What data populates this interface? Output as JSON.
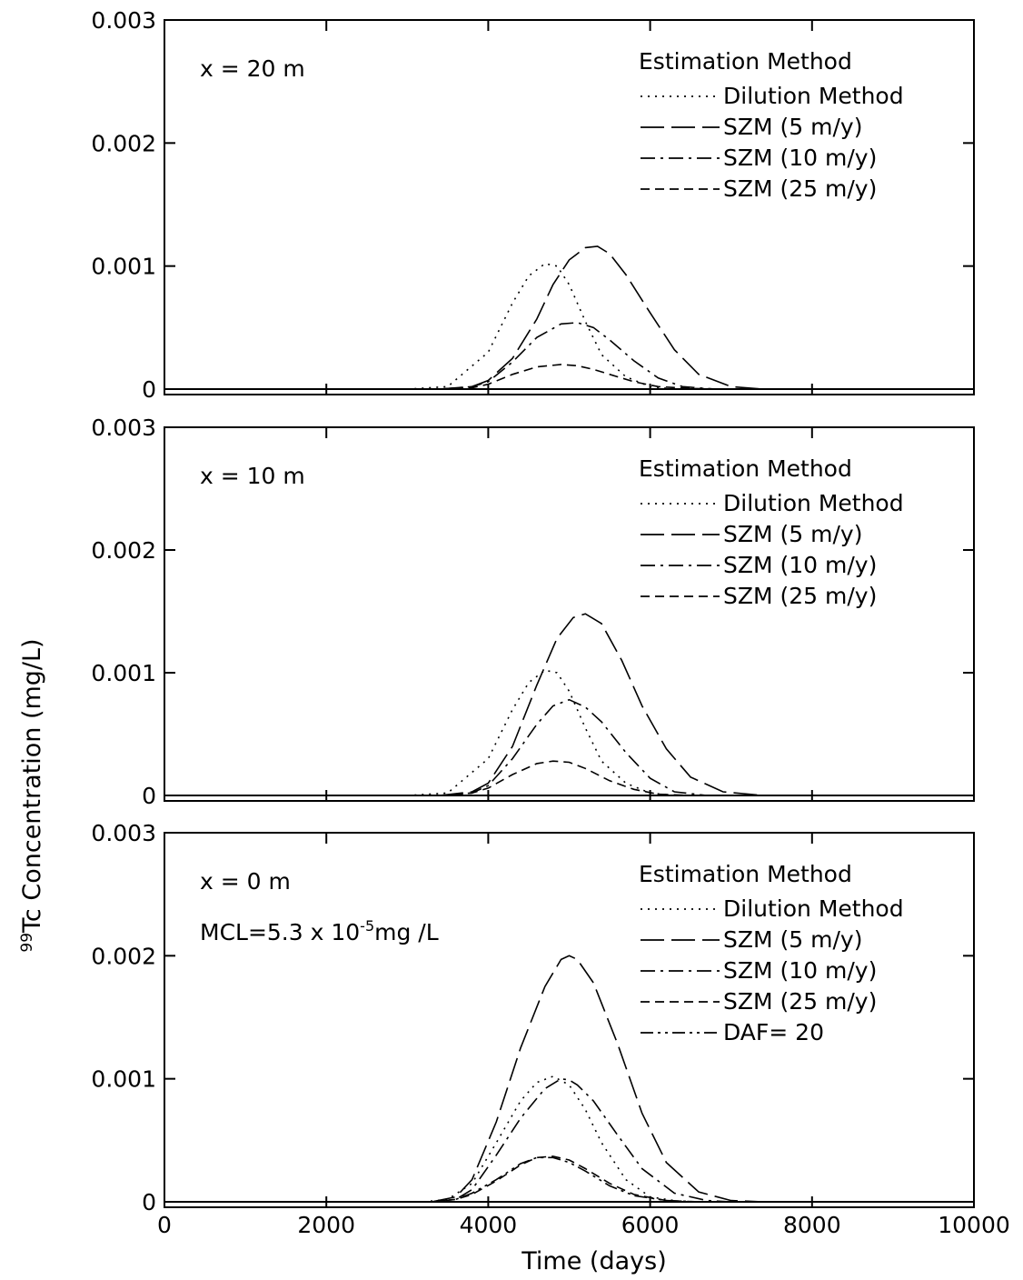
{
  "ylabel": {
    "sup": "99",
    "main": "Tc Concentration (mg/L)"
  },
  "xlabel": "Time (days)",
  "x_tick_labels": [
    "0",
    "2000",
    "4000",
    "6000",
    "8000",
    "10000"
  ],
  "y_tick_labels": [
    "0",
    "0.001",
    "0.002",
    "0.003"
  ],
  "legend_title": "Estimation Method",
  "mcl_label": {
    "prefix": "MCL=5.3 x 10",
    "exponent": "-5",
    "suffix": "mg /L"
  },
  "chart_data": [
    {
      "type": "line",
      "panel_label": "x = 20 m",
      "xlim": [
        0,
        10000
      ],
      "ylim": [
        0,
        0.003
      ],
      "legend": [
        "Dilution Method",
        "SZM (5 m/y)",
        "SZM (10 m/y)",
        "SZM (25 m/y)"
      ],
      "series": [
        {
          "name": "Dilution Method",
          "style": "dotted",
          "x": [
            3000,
            3500,
            4000,
            4300,
            4500,
            4700,
            4850,
            5000,
            5200,
            5400,
            5700,
            6000,
            6300
          ],
          "y": [
            0,
            2e-05,
            0.0003,
            0.0007,
            0.00092,
            0.00102,
            0.001,
            0.00085,
            0.00055,
            0.00028,
            0.0001,
            2e-05,
            0
          ]
        },
        {
          "name": "SZM (5 m/y)",
          "style": "long-dash",
          "x": [
            3400,
            3800,
            4000,
            4300,
            4600,
            4800,
            5000,
            5200,
            5350,
            5500,
            5700,
            6000,
            6300,
            6600,
            7000,
            7400
          ],
          "y": [
            0,
            2e-05,
            7e-05,
            0.00025,
            0.00057,
            0.00085,
            0.00105,
            0.00115,
            0.00116,
            0.0011,
            0.00093,
            0.00062,
            0.00032,
            0.00012,
            2e-05,
            0
          ]
        },
        {
          "name": "SZM (10 m/y)",
          "style": "dash-dot",
          "x": [
            3400,
            3800,
            4000,
            4300,
            4600,
            4900,
            5100,
            5300,
            5500,
            5800,
            6100,
            6400,
            6800
          ],
          "y": [
            0,
            2e-05,
            6e-05,
            0.00022,
            0.00042,
            0.00053,
            0.00054,
            0.0005,
            0.0004,
            0.00023,
            9e-05,
            2e-05,
            0
          ]
        },
        {
          "name": "SZM (25 m/y)",
          "style": "short-dash",
          "x": [
            3400,
            3800,
            4000,
            4300,
            4600,
            4900,
            5100,
            5300,
            5500,
            5800,
            6100,
            6500,
            6900
          ],
          "y": [
            0,
            1e-05,
            4e-05,
            0.00012,
            0.00018,
            0.0002,
            0.00019,
            0.00016,
            0.00012,
            6e-05,
            2e-05,
            5e-06,
            0
          ]
        }
      ]
    },
    {
      "type": "line",
      "panel_label": "x = 10 m",
      "xlim": [
        0,
        10000
      ],
      "ylim": [
        0,
        0.003
      ],
      "legend": [
        "Dilution Method",
        "SZM (5 m/y)",
        "SZM (10 m/y)",
        "SZM (25 m/y)"
      ],
      "series": [
        {
          "name": "Dilution Method",
          "style": "dotted",
          "x": [
            3000,
            3500,
            4000,
            4300,
            4500,
            4700,
            4850,
            5000,
            5200,
            5400,
            5700,
            6000,
            6300
          ],
          "y": [
            0,
            2e-05,
            0.0003,
            0.0007,
            0.00092,
            0.00102,
            0.001,
            0.00085,
            0.00055,
            0.00028,
            0.0001,
            2e-05,
            0
          ]
        },
        {
          "name": "SZM (5 m/y)",
          "style": "long-dash",
          "x": [
            3400,
            3800,
            4000,
            4300,
            4600,
            4850,
            5050,
            5200,
            5400,
            5650,
            5900,
            6200,
            6500,
            6900,
            7400
          ],
          "y": [
            0,
            3e-05,
            0.0001,
            0.0004,
            0.0009,
            0.00128,
            0.00145,
            0.00148,
            0.0014,
            0.0011,
            0.00073,
            0.00038,
            0.00015,
            3e-05,
            0
          ]
        },
        {
          "name": "SZM (10 m/y)",
          "style": "dash-dot",
          "x": [
            3400,
            3800,
            4000,
            4300,
            4600,
            4800,
            5000,
            5200,
            5400,
            5700,
            6000,
            6300,
            6700
          ],
          "y": [
            0,
            2e-05,
            8e-05,
            0.0003,
            0.00058,
            0.00073,
            0.00078,
            0.00072,
            0.0006,
            0.00035,
            0.00014,
            3e-05,
            0
          ]
        },
        {
          "name": "SZM (25 m/y)",
          "style": "short-dash",
          "x": [
            3400,
            3800,
            4000,
            4300,
            4600,
            4800,
            5000,
            5200,
            5500,
            5800,
            6100,
            6500
          ],
          "y": [
            0,
            2e-05,
            6e-05,
            0.00017,
            0.00026,
            0.00028,
            0.00027,
            0.00022,
            0.00012,
            5e-05,
            1e-05,
            0
          ]
        }
      ]
    },
    {
      "type": "line",
      "panel_label": "x = 0 m",
      "xlim": [
        0,
        10000
      ],
      "ylim": [
        0,
        0.003
      ],
      "legend": [
        "Dilution Method",
        "SZM (5 m/y)",
        "SZM (10 m/y)",
        "SZM (25 m/y)",
        "DAF= 20"
      ],
      "series": [
        {
          "name": "Dilution Method",
          "style": "dotted",
          "x": [
            3200,
            3500,
            3800,
            4100,
            4400,
            4600,
            4800,
            5000,
            5200,
            5400,
            5700,
            6000,
            6400
          ],
          "y": [
            0,
            2e-05,
            0.00015,
            0.00048,
            0.00082,
            0.00097,
            0.00102,
            0.00095,
            0.00075,
            0.00048,
            0.00018,
            4e-05,
            0
          ]
        },
        {
          "name": "SZM (5 m/y)",
          "style": "long-dash",
          "x": [
            3300,
            3600,
            3800,
            4100,
            4400,
            4700,
            4900,
            5000,
            5100,
            5300,
            5600,
            5900,
            6200,
            6600,
            7000,
            7400
          ],
          "y": [
            0,
            4e-05,
            0.00018,
            0.00065,
            0.00125,
            0.00175,
            0.00197,
            0.002,
            0.00197,
            0.00178,
            0.00128,
            0.00072,
            0.00032,
            8e-05,
            1e-05,
            0
          ]
        },
        {
          "name": "SZM (10 m/y)",
          "style": "dash-dot",
          "x": [
            3300,
            3600,
            3800,
            4100,
            4400,
            4700,
            4900,
            5000,
            5100,
            5300,
            5600,
            5900,
            6300,
            6700,
            7000
          ],
          "y": [
            0,
            2e-05,
            0.0001,
            0.00038,
            0.00068,
            0.00092,
            0.001,
            0.00099,
            0.00095,
            0.00082,
            0.00054,
            0.00027,
            7e-05,
            1e-05,
            0
          ]
        },
        {
          "name": "SZM (25 m/y)",
          "style": "short-dash",
          "x": [
            3300,
            3600,
            3800,
            4100,
            4400,
            4600,
            4800,
            5000,
            5200,
            5500,
            5800,
            6200,
            6600
          ],
          "y": [
            0,
            2e-05,
            6e-05,
            0.00017,
            0.0003,
            0.00036,
            0.00037,
            0.00034,
            0.00027,
            0.00015,
            6e-05,
            1e-05,
            0
          ]
        },
        {
          "name": "DAF= 20",
          "style": "dash-dot-dot",
          "x": [
            3300,
            3600,
            3800,
            4100,
            4400,
            4600,
            4800,
            5000,
            5200,
            5500,
            5800,
            6200,
            6600
          ],
          "y": [
            0,
            2e-05,
            7e-05,
            0.00018,
            0.00031,
            0.00036,
            0.00036,
            0.00032,
            0.00025,
            0.00013,
            5e-05,
            1e-05,
            0
          ]
        }
      ]
    }
  ]
}
